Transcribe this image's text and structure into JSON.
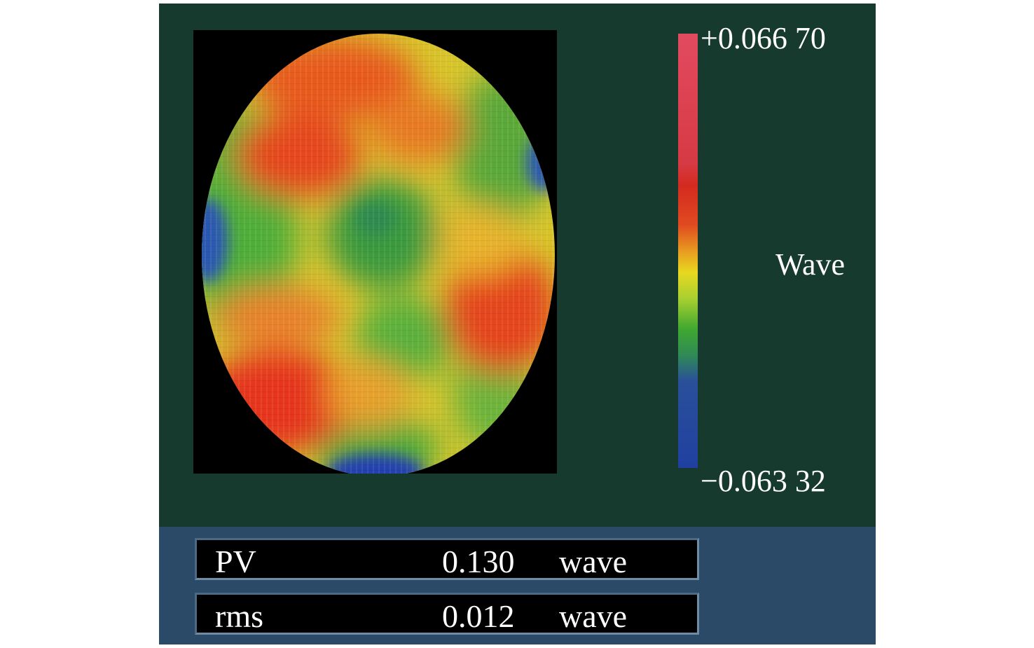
{
  "colorbar": {
    "max_label": "+0.066 70",
    "min_label": "−0.063 32",
    "unit_label": "Wave",
    "colors_top_to_bottom": [
      "#e24a60",
      "#d63a43",
      "#d42a1f",
      "#e04a20",
      "#e89a20",
      "#e8d820",
      "#a8d030",
      "#40a830",
      "#2f8a55",
      "#2a509a",
      "#2040a0"
    ]
  },
  "surface_map": {
    "icon": "wavefront-map-icon",
    "colors": {
      "high": "#e63a1e",
      "mid_high": "#e8d028",
      "mid": "#5cb838",
      "low": "#2a52b8",
      "background": "#000000"
    }
  },
  "stats": {
    "pv": {
      "label": "PV",
      "value": "0.130",
      "unit": "wave"
    },
    "rms": {
      "label": "rms",
      "value": "0.012",
      "unit": "wave"
    }
  }
}
